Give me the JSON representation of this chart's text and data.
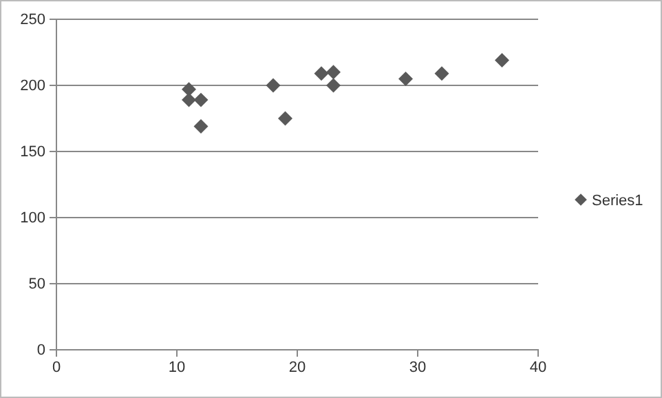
{
  "chart_data": {
    "type": "scatter",
    "x": [
      11,
      11,
      12,
      12,
      18,
      19,
      22,
      23,
      23,
      29,
      32,
      37
    ],
    "series": [
      {
        "name": "Series1",
        "color": "#595959",
        "values": [
          197,
          189,
          189,
          169,
          200,
          175,
          209,
          210,
          200,
          205,
          209,
          219
        ]
      }
    ],
    "xlim": [
      0,
      40
    ],
    "xticks": [
      0,
      10,
      20,
      30,
      40
    ],
    "ylim": [
      0,
      250
    ],
    "yticks": [
      0,
      50,
      100,
      150,
      200,
      250
    ],
    "grid": "y",
    "legend": "right",
    "marker": "diamond"
  }
}
